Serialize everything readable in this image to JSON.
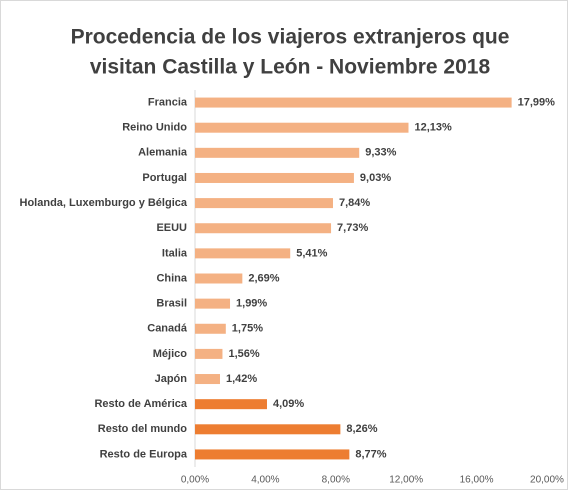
{
  "chart_data": {
    "type": "bar",
    "orientation": "horizontal",
    "title": [
      "Procedencia de los viajeros extranjeros que",
      "visitan Castilla y León - Noviembre 2018"
    ],
    "categories": [
      "Francia",
      "Reino Unido",
      "Alemania",
      "Portugal",
      "Holanda, Luxemburgo y Bélgica",
      "EEUU",
      "Italia",
      "China",
      "Brasil",
      "Canadá",
      "Méjico",
      "Japón",
      "Resto de América",
      "Resto del mundo",
      "Resto de Europa"
    ],
    "values": [
      17.99,
      12.13,
      9.33,
      9.03,
      7.84,
      7.73,
      5.41,
      2.69,
      1.99,
      1.75,
      1.56,
      1.42,
      4.09,
      8.26,
      8.77
    ],
    "value_labels": [
      "17,99%",
      "12,13%",
      "9,33%",
      "9,03%",
      "7,84%",
      "7,73%",
      "5,41%",
      "2,69%",
      "1,99%",
      "1,75%",
      "1,56%",
      "1,42%",
      "4,09%",
      "8,26%",
      "8,77%"
    ],
    "colors": [
      "#f4b183",
      "#f4b183",
      "#f4b183",
      "#f4b183",
      "#f4b183",
      "#f4b183",
      "#f4b183",
      "#f4b183",
      "#f4b183",
      "#f4b183",
      "#f4b183",
      "#f4b183",
      "#ed7d31",
      "#ed7d31",
      "#ed7d31"
    ],
    "xlim": [
      0,
      20
    ],
    "xticks": [
      {
        "value": 0,
        "label": "0,00%"
      },
      {
        "value": 4,
        "label": "4,00%"
      },
      {
        "value": 8,
        "label": "8,00%"
      },
      {
        "value": 12,
        "label": "12,00%"
      },
      {
        "value": 16,
        "label": "16,00%"
      },
      {
        "value": 20,
        "label": "20,00%"
      }
    ],
    "grid": false
  }
}
